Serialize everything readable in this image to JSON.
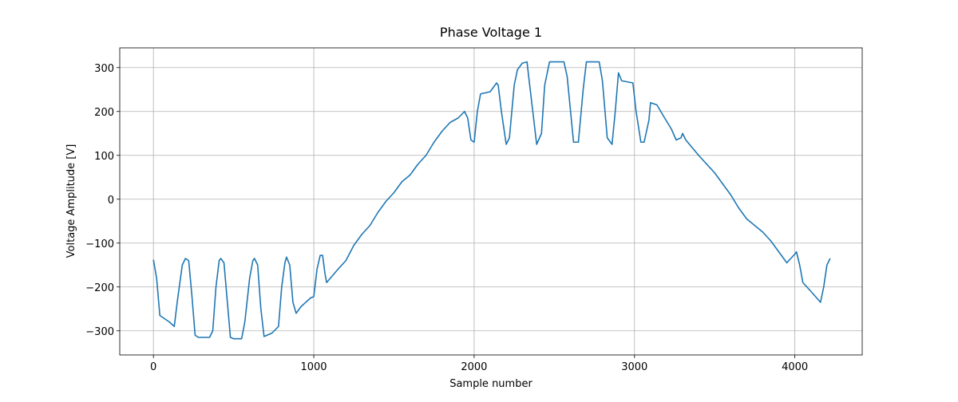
{
  "chart_data": {
    "type": "line",
    "title": "Phase Voltage 1",
    "x_label": "Sample number",
    "y_label": "Voltage Amplitude [V]",
    "x": [
      0,
      20,
      40,
      100,
      130,
      150,
      180,
      200,
      220,
      240,
      260,
      280,
      350,
      370,
      390,
      410,
      420,
      440,
      460,
      480,
      500,
      550,
      570,
      600,
      620,
      630,
      650,
      670,
      690,
      740,
      780,
      800,
      820,
      830,
      850,
      870,
      890,
      920,
      980,
      1000,
      1020,
      1040,
      1055,
      1070,
      1080,
      1150,
      1200,
      1250,
      1300,
      1350,
      1400,
      1450,
      1500,
      1550,
      1600,
      1650,
      1700,
      1750,
      1800,
      1850,
      1900,
      1940,
      1960,
      1980,
      2000,
      2020,
      2040,
      2100,
      2140,
      2150,
      2170,
      2200,
      2220,
      2250,
      2270,
      2300,
      2330,
      2340,
      2390,
      2420,
      2440,
      2470,
      2560,
      2580,
      2620,
      2650,
      2680,
      2700,
      2780,
      2800,
      2830,
      2860,
      2880,
      2900,
      2920,
      2990,
      3010,
      3040,
      3060,
      3090,
      3100,
      3140,
      3180,
      3230,
      3260,
      3290,
      3300,
      3320,
      3400,
      3500,
      3600,
      3650,
      3700,
      3800,
      3850,
      3900,
      3950,
      4000,
      4010,
      4030,
      4050,
      4100,
      4160,
      4180,
      4200,
      4220
    ],
    "values": [
      -138,
      -180,
      -265,
      -280,
      -290,
      -230,
      -150,
      -135,
      -140,
      -220,
      -310,
      -315,
      -315,
      -300,
      -200,
      -140,
      -135,
      -145,
      -230,
      -315,
      -318,
      -318,
      -280,
      -180,
      -140,
      -135,
      -150,
      -250,
      -313,
      -305,
      -290,
      -200,
      -145,
      -132,
      -150,
      -235,
      -260,
      -245,
      -225,
      -222,
      -160,
      -128,
      -128,
      -170,
      -190,
      -160,
      -140,
      -105,
      -80,
      -60,
      -30,
      -5,
      15,
      40,
      55,
      80,
      100,
      130,
      155,
      175,
      185,
      200,
      185,
      135,
      130,
      200,
      240,
      245,
      265,
      260,
      200,
      125,
      140,
      260,
      295,
      310,
      313,
      280,
      125,
      150,
      260,
      313,
      313,
      280,
      130,
      130,
      250,
      313,
      313,
      270,
      140,
      125,
      200,
      288,
      270,
      265,
      200,
      130,
      130,
      180,
      220,
      215,
      190,
      160,
      135,
      140,
      150,
      135,
      100,
      60,
      10,
      -20,
      -45,
      -75,
      -95,
      -120,
      -145,
      -125,
      -120,
      -150,
      -190,
      -210,
      -235,
      -200,
      -150,
      -135
    ],
    "color": "#1f77b4",
    "xlim": [
      -210,
      4420
    ],
    "ylim": [
      -355,
      345
    ],
    "xticks": [
      0,
      1000,
      2000,
      3000,
      4000
    ],
    "yticks": [
      {
        "value": -300,
        "label": "−300"
      },
      {
        "value": -200,
        "label": "−200"
      },
      {
        "value": -100,
        "label": "−100"
      },
      0,
      100,
      200,
      300
    ],
    "grid": true
  }
}
